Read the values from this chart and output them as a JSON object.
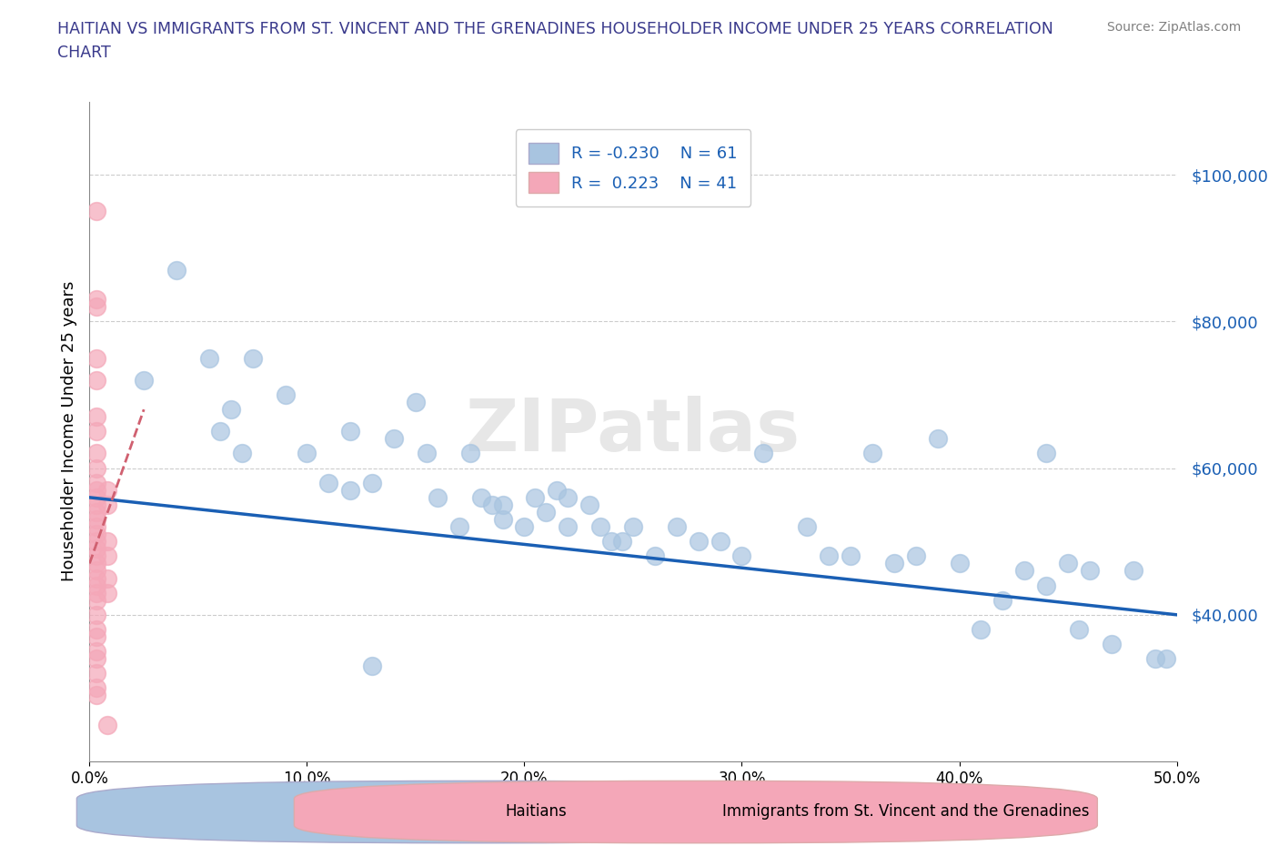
{
  "title_line1": "HAITIAN VS IMMIGRANTS FROM ST. VINCENT AND THE GRENADINES HOUSEHOLDER INCOME UNDER 25 YEARS CORRELATION",
  "title_line2": "CHART",
  "ylabel": "Householder Income Under 25 years",
  "source": "Source: ZipAtlas.com",
  "watermark": "ZIPatlas",
  "xlim": [
    0.0,
    0.5
  ],
  "ylim": [
    20000,
    110000
  ],
  "xticks": [
    0.0,
    0.1,
    0.2,
    0.3,
    0.4,
    0.5
  ],
  "xticklabels": [
    "0.0%",
    "10.0%",
    "20.0%",
    "30.0%",
    "40.0%",
    "50.0%"
  ],
  "yticks_right": [
    40000,
    60000,
    80000,
    100000
  ],
  "ytick_right_labels": [
    "$40,000",
    "$60,000",
    "$80,000",
    "$100,000"
  ],
  "legend_R_blue": "-0.230",
  "legend_N_blue": "61",
  "legend_R_pink": "0.223",
  "legend_N_pink": "41",
  "blue_color": "#a8c4e0",
  "pink_color": "#f4a7b8",
  "trend_blue_color": "#1a5fb4",
  "trend_pink_color": "#d06070",
  "grid_color": "#cccccc",
  "blue_scatter": [
    [
      0.025,
      72000
    ],
    [
      0.04,
      87000
    ],
    [
      0.055,
      75000
    ],
    [
      0.06,
      65000
    ],
    [
      0.065,
      68000
    ],
    [
      0.07,
      62000
    ],
    [
      0.075,
      75000
    ],
    [
      0.09,
      70000
    ],
    [
      0.1,
      62000
    ],
    [
      0.11,
      58000
    ],
    [
      0.12,
      65000
    ],
    [
      0.12,
      57000
    ],
    [
      0.13,
      58000
    ],
    [
      0.14,
      64000
    ],
    [
      0.15,
      69000
    ],
    [
      0.155,
      62000
    ],
    [
      0.16,
      56000
    ],
    [
      0.17,
      52000
    ],
    [
      0.175,
      62000
    ],
    [
      0.18,
      56000
    ],
    [
      0.185,
      55000
    ],
    [
      0.19,
      55000
    ],
    [
      0.19,
      53000
    ],
    [
      0.2,
      52000
    ],
    [
      0.205,
      56000
    ],
    [
      0.21,
      54000
    ],
    [
      0.215,
      57000
    ],
    [
      0.22,
      56000
    ],
    [
      0.22,
      52000
    ],
    [
      0.23,
      55000
    ],
    [
      0.235,
      52000
    ],
    [
      0.24,
      50000
    ],
    [
      0.245,
      50000
    ],
    [
      0.25,
      52000
    ],
    [
      0.26,
      48000
    ],
    [
      0.27,
      52000
    ],
    [
      0.28,
      50000
    ],
    [
      0.29,
      50000
    ],
    [
      0.3,
      48000
    ],
    [
      0.31,
      62000
    ],
    [
      0.33,
      52000
    ],
    [
      0.34,
      48000
    ],
    [
      0.35,
      48000
    ],
    [
      0.36,
      62000
    ],
    [
      0.37,
      47000
    ],
    [
      0.38,
      48000
    ],
    [
      0.39,
      64000
    ],
    [
      0.4,
      47000
    ],
    [
      0.41,
      38000
    ],
    [
      0.42,
      42000
    ],
    [
      0.43,
      46000
    ],
    [
      0.44,
      44000
    ],
    [
      0.44,
      62000
    ],
    [
      0.45,
      47000
    ],
    [
      0.46,
      46000
    ],
    [
      0.455,
      38000
    ],
    [
      0.47,
      36000
    ],
    [
      0.48,
      46000
    ],
    [
      0.49,
      34000
    ],
    [
      0.495,
      34000
    ],
    [
      0.13,
      33000
    ]
  ],
  "pink_scatter": [
    [
      0.003,
      95000
    ],
    [
      0.003,
      82000
    ],
    [
      0.003,
      83000
    ],
    [
      0.003,
      75000
    ],
    [
      0.003,
      72000
    ],
    [
      0.003,
      67000
    ],
    [
      0.003,
      65000
    ],
    [
      0.003,
      62000
    ],
    [
      0.003,
      60000
    ],
    [
      0.003,
      58000
    ],
    [
      0.003,
      57000
    ],
    [
      0.003,
      56000
    ],
    [
      0.003,
      55000
    ],
    [
      0.003,
      54000
    ],
    [
      0.003,
      53000
    ],
    [
      0.003,
      52000
    ],
    [
      0.003,
      51000
    ],
    [
      0.003,
      50000
    ],
    [
      0.003,
      49000
    ],
    [
      0.003,
      48000
    ],
    [
      0.003,
      47000
    ],
    [
      0.003,
      46000
    ],
    [
      0.003,
      45000
    ],
    [
      0.003,
      44000
    ],
    [
      0.003,
      43000
    ],
    [
      0.003,
      42000
    ],
    [
      0.003,
      40000
    ],
    [
      0.003,
      38000
    ],
    [
      0.003,
      37000
    ],
    [
      0.003,
      35000
    ],
    [
      0.003,
      34000
    ],
    [
      0.003,
      32000
    ],
    [
      0.003,
      30000
    ],
    [
      0.003,
      29000
    ],
    [
      0.008,
      57000
    ],
    [
      0.008,
      55000
    ],
    [
      0.008,
      50000
    ],
    [
      0.008,
      48000
    ],
    [
      0.008,
      45000
    ],
    [
      0.008,
      43000
    ],
    [
      0.008,
      25000
    ]
  ],
  "blue_trend_x": [
    0.0,
    0.5
  ],
  "blue_trend_y": [
    56000,
    40000
  ],
  "pink_trend_x": [
    0.0,
    0.025
  ],
  "pink_trend_y": [
    47000,
    68000
  ]
}
